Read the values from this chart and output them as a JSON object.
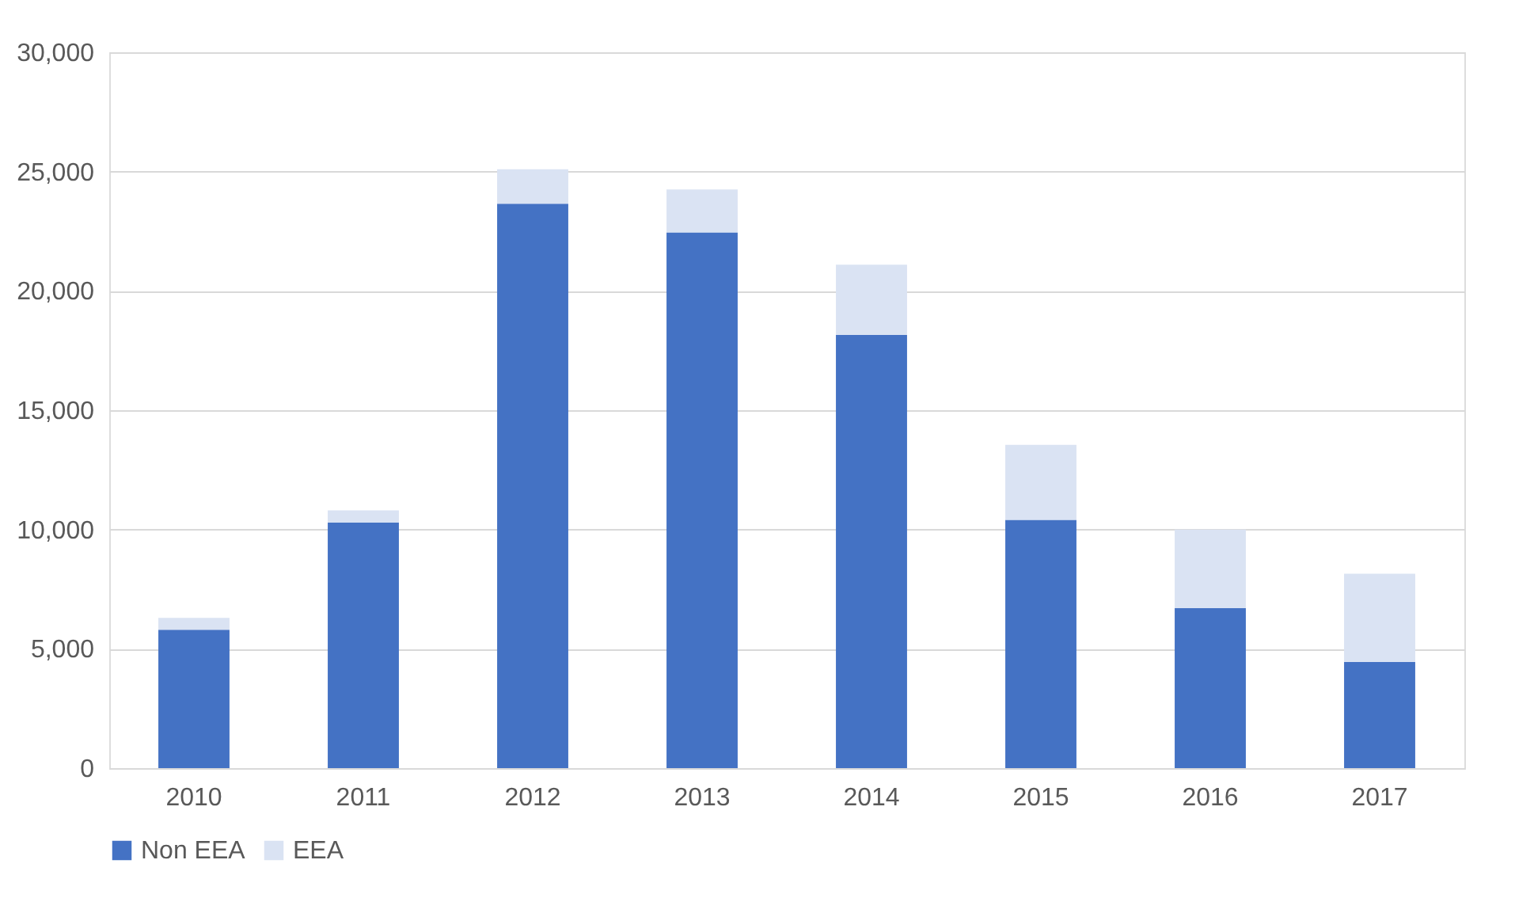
{
  "chart_data": {
    "type": "bar",
    "stacked": true,
    "categories": [
      "2010",
      "2011",
      "2012",
      "2013",
      "2014",
      "2015",
      "2016",
      "2017"
    ],
    "series": [
      {
        "name": "Non EEA",
        "color": "#4472c4",
        "values": [
          5800,
          10300,
          23650,
          22450,
          18150,
          10400,
          6700,
          4450
        ]
      },
      {
        "name": "EEA",
        "color": "#dae3f3",
        "values": [
          500,
          500,
          1450,
          1800,
          2950,
          3150,
          3300,
          3700
        ]
      }
    ],
    "ylim": [
      0,
      30000
    ],
    "yticks": [
      0,
      {
        "value": 5000,
        "label": "5,000"
      },
      {
        "value": 10000,
        "label": "10,000"
      },
      {
        "value": 15000,
        "label": "15,000"
      },
      {
        "value": 20000,
        "label": "20,000"
      },
      {
        "value": 25000,
        "label": "25,000"
      },
      {
        "value": 30000,
        "label": "30,000"
      }
    ],
    "grid": "y",
    "legend": "bottom"
  }
}
